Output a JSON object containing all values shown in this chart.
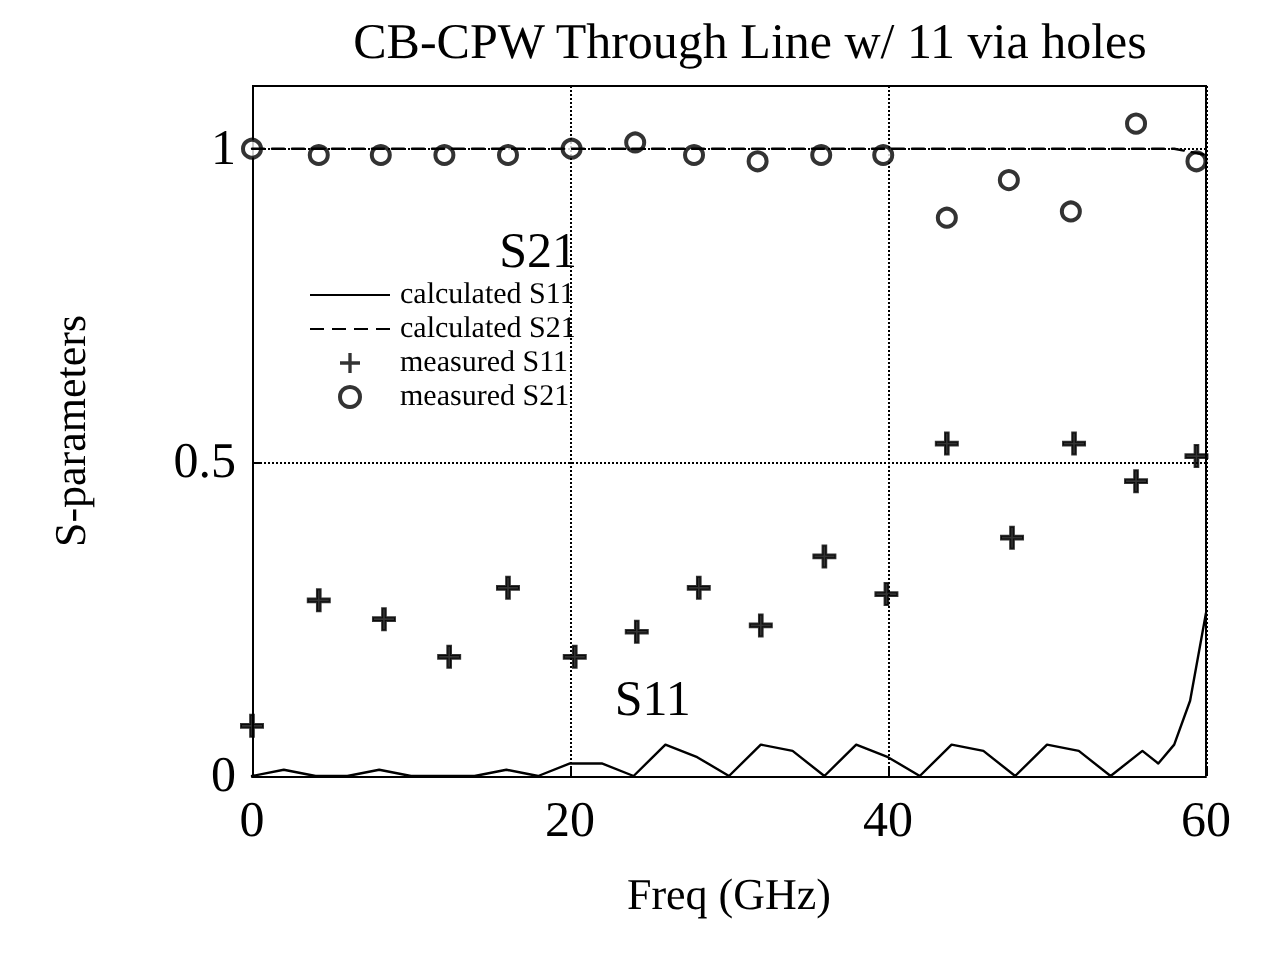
{
  "chart_data": {
    "type": "line",
    "title": "CB-CPW Through Line w/ 11 via holes",
    "xlabel": "Freq (GHz)",
    "ylabel": "S-parameters",
    "xlim": [
      0,
      60
    ],
    "ylim": [
      0,
      1.1
    ],
    "xticks": [
      0,
      20,
      40,
      60
    ],
    "yticks": [
      0,
      0.5,
      1
    ],
    "grid": true,
    "legend": "top left",
    "annotations": [
      "S21",
      "S11"
    ],
    "series": [
      {
        "name": "calculated S11",
        "line_style": "solid",
        "marker": "none",
        "color": "#000000",
        "x": [
          0,
          2,
          4,
          6,
          8,
          10,
          12,
          14,
          16,
          18,
          20,
          22,
          24,
          26,
          28,
          30,
          32,
          34,
          36,
          38,
          40,
          42,
          44,
          46,
          48,
          50,
          52,
          54,
          56,
          57,
          58,
          59,
          60
        ],
        "values": [
          0.0,
          0.01,
          0.0,
          0.0,
          0.01,
          0.0,
          0.0,
          0.0,
          0.01,
          0.0,
          0.02,
          0.02,
          0.0,
          0.05,
          0.03,
          0.0,
          0.05,
          0.04,
          0.0,
          0.05,
          0.03,
          0.0,
          0.05,
          0.04,
          0.0,
          0.05,
          0.04,
          0.0,
          0.04,
          0.02,
          0.05,
          0.12,
          0.26
        ]
      },
      {
        "name": "calculated S21",
        "line_style": "dashed",
        "marker": "none",
        "color": "#000000",
        "x": [
          0,
          10,
          20,
          30,
          40,
          50,
          55,
          58,
          60
        ],
        "values": [
          1.0,
          1.0,
          1.0,
          1.0,
          1.0,
          1.0,
          1.0,
          1.0,
          0.99
        ]
      },
      {
        "name": "measured S11",
        "type": "scatter",
        "marker": "cross",
        "color": "#000000",
        "x": [
          0,
          4.2,
          8.3,
          12.4,
          16.1,
          20.3,
          24.2,
          28.1,
          32.0,
          36.0,
          39.9,
          43.7,
          47.8,
          51.7,
          55.6,
          59.4
        ],
        "values": [
          0.08,
          0.28,
          0.25,
          0.19,
          0.3,
          0.19,
          0.23,
          0.3,
          0.24,
          0.35,
          0.29,
          0.53,
          0.38,
          0.53,
          0.47,
          0.51
        ]
      },
      {
        "name": "measured S21",
        "type": "scatter",
        "marker": "circle",
        "color": "#000000",
        "x": [
          0,
          4.2,
          8.1,
          12.1,
          16.1,
          20.1,
          24.1,
          27.8,
          31.8,
          35.8,
          39.7,
          43.7,
          47.6,
          51.5,
          55.6,
          59.4
        ],
        "values": [
          1.0,
          0.99,
          0.99,
          0.99,
          0.99,
          1.0,
          1.01,
          0.99,
          0.98,
          0.99,
          0.99,
          0.89,
          0.95,
          0.9,
          1.04,
          0.98
        ]
      }
    ]
  }
}
